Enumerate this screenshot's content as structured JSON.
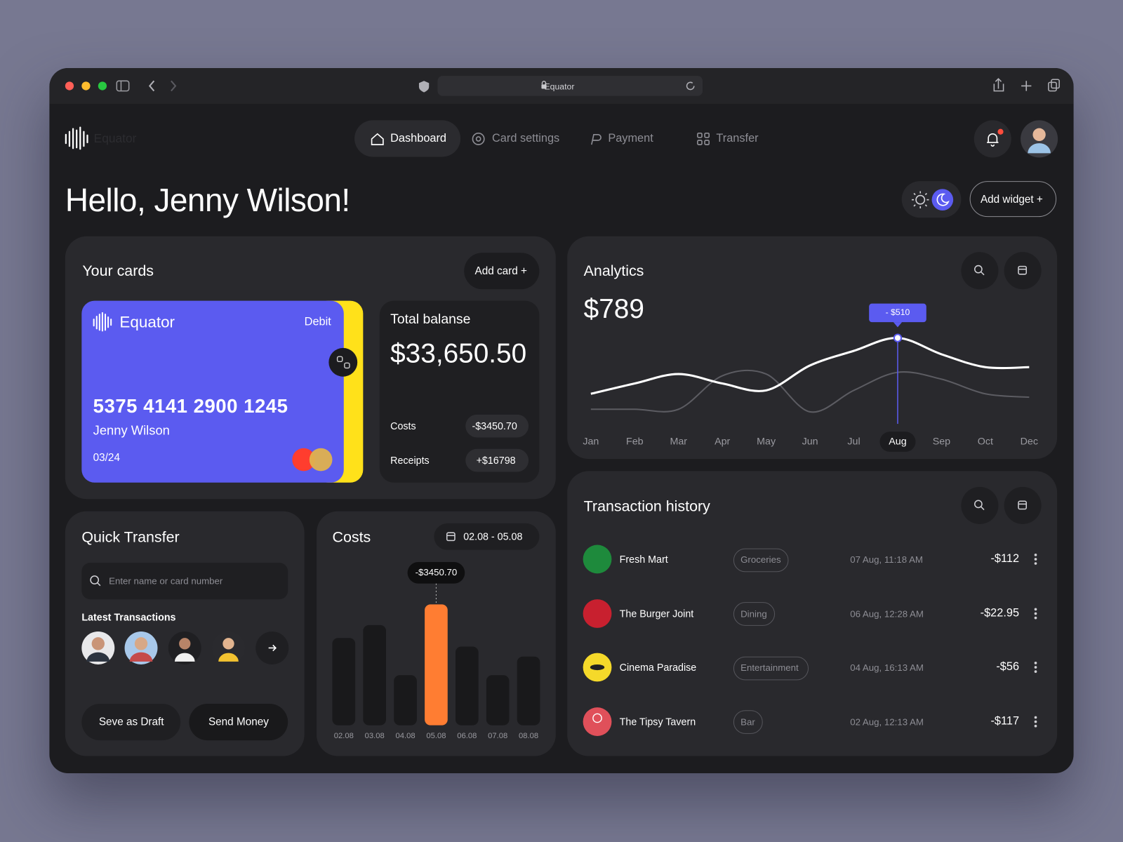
{
  "browser": {
    "address": "Equator"
  },
  "header": {
    "logo_text": "Equator",
    "nav": [
      "Dashboard",
      "Card settings",
      "Payment",
      "Transfer"
    ]
  },
  "greeting": "Hello, Jenny Wilson!",
  "add_widget": "Add widget +",
  "cards": {
    "title": "Your cards",
    "add_button": "Add card +",
    "card": {
      "brand": "Equator",
      "type": "Debit",
      "number": "5375 4141 2900 1245",
      "holder": "Jenny Wilson",
      "expiry": "03/24"
    }
  },
  "balance": {
    "title": "Total balanse",
    "amount": "$33,650.50",
    "rows": [
      [
        "Costs",
        "-$3450.70"
      ],
      [
        "Receipts",
        "+$16798"
      ]
    ]
  },
  "quick_transfer": {
    "title": "Quick Transfer",
    "placeholder": "Enter name or card number",
    "latest": "Latest Transactions",
    "draft_button": "Seve as Draft",
    "send_button": "Send Money"
  },
  "transactions": {
    "title": "Transaction history",
    "rows": [
      [
        "Fresh Mart",
        "Groceries",
        "07 Aug, 11:18 AM",
        "-$112"
      ],
      [
        "The Burger Joint",
        "Dining",
        "06 Aug, 12:28 AM",
        "-$22.95"
      ],
      [
        "Cinema Paradise",
        "Entertainment",
        "04 Aug, 16:13 AM",
        "-$56"
      ],
      [
        "The Tipsy Tavern",
        "Bar",
        "02 Aug, 12:13 AM",
        "-$117"
      ]
    ]
  },
  "chart_data": [
    {
      "type": "line",
      "title": "Analytics",
      "subtitle": "$789",
      "categories": [
        "Jan",
        "Feb",
        "Mar",
        "Apr",
        "May",
        "Jun",
        "Jul",
        "Aug",
        "Sep",
        "Oct",
        "Dec"
      ],
      "series": [
        {
          "color": "#ffffff",
          "values": [
            25,
            37,
            48,
            37,
            29,
            58,
            75,
            90,
            71,
            56,
            56
          ]
        },
        {
          "color": "#5c5c62",
          "values": [
            7,
            7,
            7,
            46,
            48,
            4,
            29,
            50,
            42,
            25,
            21
          ]
        }
      ],
      "ylim": [
        0,
        100
      ],
      "highlight_color": "#5b5bf0",
      "annotation": {
        "text": "- $510",
        "category": "Aug"
      }
    },
    {
      "type": "bar",
      "title": "Costs",
      "date_range": "02.08 - 05.08",
      "categories": [
        "02.08",
        "03.08",
        "04.08",
        "05.08",
        "06.08",
        "07.08",
        "08.08"
      ],
      "values": [
        2491,
        2859,
        1429,
        3450.7,
        2246,
        1429,
        1960
      ],
      "ylim": [
        0,
        3800
      ],
      "color": "#19191b",
      "highlight_color": "#ff7d32",
      "annotation": {
        "text": "-$3450.70",
        "category": "05.08"
      }
    }
  ]
}
